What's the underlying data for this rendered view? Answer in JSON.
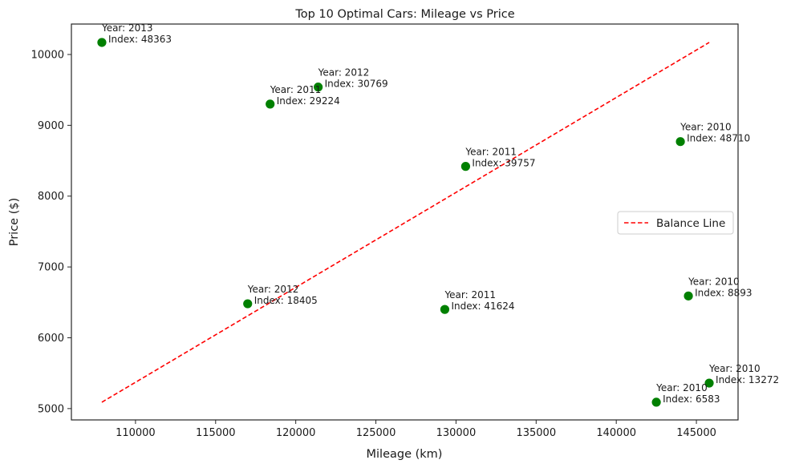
{
  "chart_data": {
    "type": "scatter",
    "title": "Top 10 Optimal Cars: Mileage vs Price",
    "xlabel": "Mileage (km)",
    "ylabel": "Price ($)",
    "xlim": [
      106000,
      147600
    ],
    "ylim": [
      4840,
      10430
    ],
    "xticks": [
      110000,
      115000,
      120000,
      125000,
      130000,
      135000,
      140000,
      145000
    ],
    "yticks": [
      5000,
      6000,
      7000,
      8000,
      9000,
      10000
    ],
    "grid": false,
    "legend_position": "center-right",
    "colors": {
      "points": "#008000",
      "line": "#ff0000"
    },
    "points": [
      {
        "x": 107900,
        "y": 10170,
        "year": "Year: 2013",
        "index": "Index: 48363"
      },
      {
        "x": 121400,
        "y": 9540,
        "year": "Year: 2012",
        "index": "Index: 30769"
      },
      {
        "x": 118400,
        "y": 9300,
        "year": "Year: 2011",
        "index": "Index: 29224"
      },
      {
        "x": 144000,
        "y": 8770,
        "year": "Year: 2010",
        "index": "Index: 48710"
      },
      {
        "x": 130600,
        "y": 8420,
        "year": "Year: 2011",
        "index": "Index: 39757"
      },
      {
        "x": 117000,
        "y": 6480,
        "year": "Year: 2012",
        "index": "Index: 18405"
      },
      {
        "x": 129300,
        "y": 6400,
        "year": "Year: 2011",
        "index": "Index: 41624"
      },
      {
        "x": 144500,
        "y": 6590,
        "year": "Year: 2010",
        "index": "Index: 8893"
      },
      {
        "x": 145800,
        "y": 5360,
        "year": "Year: 2010",
        "index": "Index: 13272"
      },
      {
        "x": 142500,
        "y": 5090,
        "year": "Year: 2010",
        "index": "Index: 6583"
      }
    ],
    "series": [
      {
        "name": "Balance Line",
        "type": "line",
        "style": "dashed",
        "x": [
          107900,
          145800
        ],
        "y": [
          5090,
          10170
        ]
      }
    ]
  }
}
